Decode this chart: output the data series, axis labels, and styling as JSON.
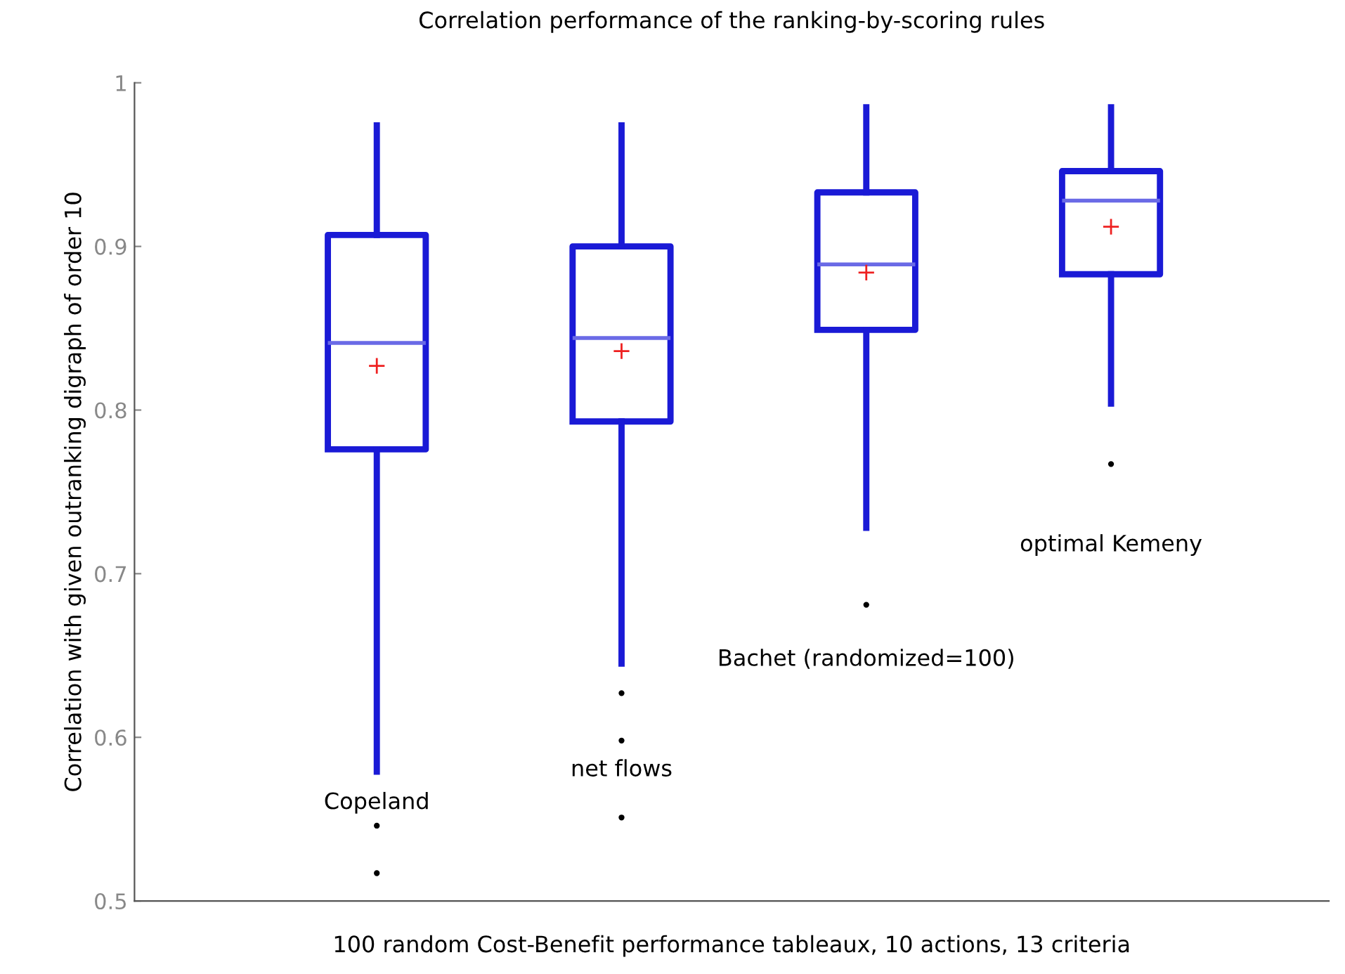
{
  "chart_data": {
    "type": "box",
    "title": "Correlation performance of the ranking-by-scoring rules",
    "xlabel": "100 random Cost-Benefit performance tableaux, 10 actions, 13 criteria",
    "ylabel": "Correlation with given outranking digraph of order 10",
    "categories": [
      null,
      null,
      null,
      null
    ],
    "color": "#1a1ad6",
    "boxes": [
      {
        "low": 0.579,
        "q1": 0.776,
        "median": 0.841,
        "q3": 0.907,
        "high": 0.974,
        "mean": 0.827,
        "outliers": [
          0.546,
          0.517
        ]
      },
      {
        "low": 0.645,
        "q1": 0.793,
        "median": 0.844,
        "q3": 0.9,
        "high": 0.974,
        "mean": 0.836,
        "outliers": [
          0.627,
          0.598,
          0.551
        ]
      },
      {
        "low": 0.728,
        "q1": 0.849,
        "median": 0.889,
        "q3": 0.933,
        "high": 0.985,
        "mean": 0.884,
        "outliers": [
          0.681
        ]
      },
      {
        "low": 0.804,
        "q1": 0.883,
        "median": 0.928,
        "q3": 0.946,
        "high": 0.985,
        "mean": 0.912,
        "outliers": [
          0.767
        ]
      }
    ],
    "annotations": [
      "Copeland",
      "net flows",
      "Bachet (randomized=100)",
      "optimal Kemeny"
    ],
    "ylim": [
      0.5,
      1
    ],
    "yticks": [
      0.5,
      0.6,
      0.7,
      0.8,
      0.9,
      1
    ],
    "grid": false
  }
}
